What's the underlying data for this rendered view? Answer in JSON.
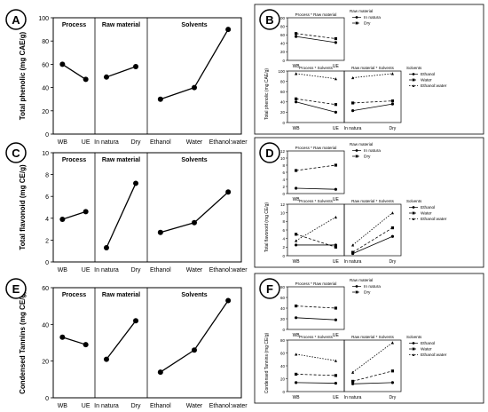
{
  "panel_letters": [
    "A",
    "B",
    "C",
    "D",
    "E",
    "F"
  ],
  "chart_data": [
    {
      "panel": "A",
      "type": "line",
      "ylabel": "Total phenolic (mg CAE/g)",
      "ylim": [
        0,
        100
      ],
      "yticks": [
        0,
        20,
        40,
        60,
        80,
        100
      ],
      "groups": [
        {
          "title": "Process",
          "categories": [
            "WB",
            "UE"
          ],
          "values": [
            60,
            47
          ]
        },
        {
          "title": "Raw material",
          "categories": [
            "In natura",
            "Dry"
          ],
          "values": [
            49,
            58
          ]
        },
        {
          "title": "Solvents",
          "categories": [
            "Ethanol",
            "Water",
            "Ethanol:water"
          ],
          "values": [
            30,
            40,
            90
          ]
        }
      ]
    },
    {
      "panel": "B",
      "type": "line",
      "ylabel": "Total phenolic (mg CAE/g)",
      "subplots": [
        {
          "title": "Process * Raw material",
          "ylim": [
            0,
            100
          ],
          "yticks": [
            0,
            20,
            40,
            60,
            80,
            100
          ],
          "categories": [
            "WB",
            "UE"
          ],
          "legend_title": "Raw material",
          "series": [
            {
              "name": "In natura",
              "values": [
                56,
                42
              ]
            },
            {
              "name": "Dry",
              "values": [
                63,
                51
              ]
            }
          ]
        },
        {
          "title": "Process * Solvents",
          "ylim": [
            0,
            100
          ],
          "yticks": [
            0,
            20,
            40,
            60,
            80,
            100
          ],
          "categories": [
            "WB",
            "UE"
          ],
          "legend_title": "Solvents",
          "series": [
            {
              "name": "Ethanol",
              "values": [
                40,
                20
              ]
            },
            {
              "name": "Water",
              "values": [
                46,
                35
              ]
            },
            {
              "name": "Ethanol:water",
              "values": [
                95,
                85
              ]
            }
          ]
        },
        {
          "title": "Raw material * Solvents",
          "ylim": [
            0,
            100
          ],
          "categories": [
            "In natura",
            "Dry"
          ],
          "series": [
            {
              "name": "Ethanol",
              "values": [
                23,
                36
              ]
            },
            {
              "name": "Water",
              "values": [
                38,
                42
              ]
            },
            {
              "name": "Ethanol:water",
              "values": [
                87,
                95
              ]
            }
          ]
        }
      ]
    },
    {
      "panel": "C",
      "type": "line",
      "ylabel": "Total flavonoid (mg CE/g)",
      "ylim": [
        0,
        10
      ],
      "yticks": [
        0,
        2,
        4,
        6,
        8,
        10
      ],
      "groups": [
        {
          "title": "Process",
          "categories": [
            "WB",
            "UE"
          ],
          "values": [
            3.9,
            4.6
          ]
        },
        {
          "title": "Raw material",
          "categories": [
            "In natura",
            "Dry"
          ],
          "values": [
            1.3,
            7.2
          ]
        },
        {
          "title": "Solvents",
          "categories": [
            "Ethanol",
            "Water",
            "Ethanol:water"
          ],
          "values": [
            2.7,
            3.6,
            6.4
          ]
        }
      ]
    },
    {
      "panel": "D",
      "type": "line",
      "ylabel": "Total flavonoid (mg CE/g)",
      "subplots": [
        {
          "title": "Process * Raw material",
          "ylim": [
            0,
            12
          ],
          "yticks": [
            0,
            2,
            4,
            6,
            8,
            10,
            12
          ],
          "categories": [
            "WB",
            "UE"
          ],
          "legend_title": "Raw material",
          "series": [
            {
              "name": "In natura",
              "values": [
                1.5,
                1.2
              ]
            },
            {
              "name": "Dry",
              "values": [
                6.5,
                8.0
              ]
            }
          ]
        },
        {
          "title": "Process * Solvents",
          "ylim": [
            0,
            12
          ],
          "yticks": [
            0,
            2,
            4,
            6,
            8,
            10,
            12
          ],
          "categories": [
            "WB",
            "UE"
          ],
          "legend_title": "Solvents",
          "series": [
            {
              "name": "Ethanol",
              "values": [
                2.5,
                2.5
              ]
            },
            {
              "name": "Water",
              "values": [
                5.0,
                2.0
              ]
            },
            {
              "name": "Ethanol:water",
              "values": [
                3.5,
                9.0
              ]
            }
          ]
        },
        {
          "title": "Raw material * Solvents",
          "ylim": [
            0,
            12
          ],
          "categories": [
            "In natura",
            "Dry"
          ],
          "series": [
            {
              "name": "Ethanol",
              "values": [
                0.5,
                4.5
              ]
            },
            {
              "name": "Water",
              "values": [
                0.8,
                6.5
              ]
            },
            {
              "name": "Ethanol:water",
              "values": [
                2.5,
                10.0
              ]
            }
          ]
        }
      ]
    },
    {
      "panel": "E",
      "type": "line",
      "ylabel": "Condensed Tannins (mg CE/g)",
      "ylim": [
        0,
        60
      ],
      "yticks": [
        0,
        20,
        40,
        60
      ],
      "groups": [
        {
          "title": "Process",
          "categories": [
            "WB",
            "UE"
          ],
          "values": [
            33,
            29
          ]
        },
        {
          "title": "Raw material",
          "categories": [
            "In natura",
            "Dry"
          ],
          "values": [
            21,
            42
          ]
        },
        {
          "title": "Solvents",
          "categories": [
            "Ethanol",
            "Water",
            "Ethanol:water"
          ],
          "values": [
            14,
            26,
            53
          ]
        }
      ]
    },
    {
      "panel": "F",
      "type": "line",
      "ylabel": "Condensed Tannins (mg CE/g)",
      "subplots": [
        {
          "title": "Process * Raw material",
          "ylim": [
            0,
            80
          ],
          "yticks": [
            0,
            20,
            40,
            60,
            80
          ],
          "categories": [
            "WB",
            "UE"
          ],
          "legend_title": "Raw material",
          "series": [
            {
              "name": "In natura",
              "values": [
                22,
                18
              ]
            },
            {
              "name": "Dry",
              "values": [
                44,
                40
              ]
            }
          ]
        },
        {
          "title": "Process * Solvents",
          "ylim": [
            0,
            80
          ],
          "yticks": [
            0,
            20,
            40,
            60,
            80
          ],
          "categories": [
            "WB",
            "UE"
          ],
          "legend_title": "Solvents",
          "series": [
            {
              "name": "Ethanol",
              "values": [
                14,
                13
              ]
            },
            {
              "name": "Water",
              "values": [
                27,
                25
              ]
            },
            {
              "name": "Ethanol:water",
              "values": [
                58,
                48
              ]
            }
          ]
        },
        {
          "title": "Raw material * Solvents",
          "ylim": [
            0,
            80
          ],
          "categories": [
            "In natura",
            "Dry"
          ],
          "series": [
            {
              "name": "Ethanol",
              "values": [
                12,
                14
              ]
            },
            {
              "name": "Water",
              "values": [
                16,
                32
              ]
            },
            {
              "name": "Ethanol:water",
              "values": [
                30,
                76
              ]
            }
          ]
        }
      ]
    }
  ]
}
